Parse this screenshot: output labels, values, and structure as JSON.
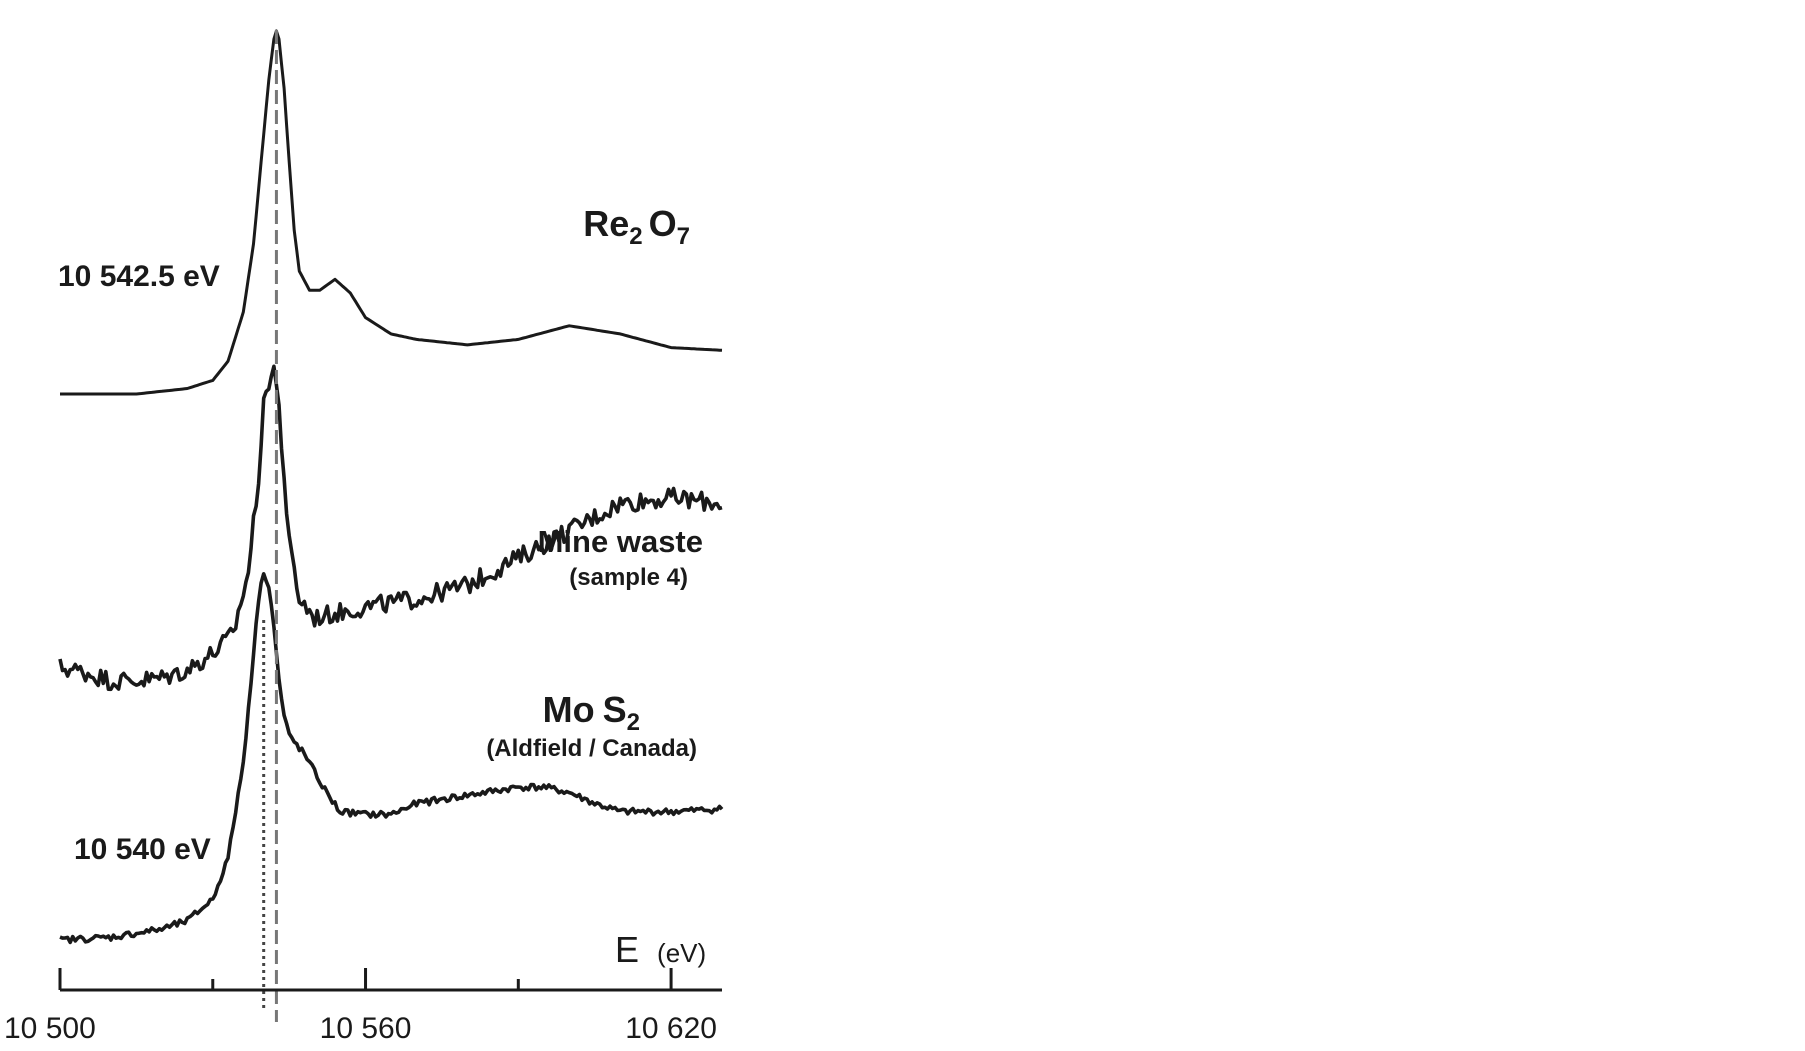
{
  "chart_data": {
    "type": "line",
    "xlabel": "E",
    "xunit": "(eV)",
    "xlim": [
      10500,
      10630
    ],
    "tick_labels": [
      "10 500",
      "10 560",
      "10 620"
    ],
    "major_ticks": [
      10500,
      10560,
      10620
    ],
    "minor_ticks": [
      10530,
      10590
    ],
    "grid": false,
    "legend": "none",
    "series_labels": [
      {
        "main": "Re",
        "sub1": "2",
        "mid": "O",
        "sub2": "7",
        "note": ""
      },
      {
        "main": "Mine waste",
        "sub1": "",
        "mid": "",
        "sub2": "",
        "note": "(sample 4)"
      },
      {
        "main": "Mo",
        "sub1": "",
        "mid": "S",
        "sub2": "2",
        "note": "(Aldfield / Canada)"
      }
    ],
    "annotations": [
      {
        "text": "10 542.5 eV",
        "x": 10542.5,
        "style": "dashed"
      },
      {
        "text": "10 540 eV",
        "x": 10540,
        "style": "dotted"
      }
    ],
    "series": [
      {
        "key": "re2o7",
        "offset": 2.0,
        "noise": 0,
        "points": [
          [
            10500,
            0.0
          ],
          [
            10515,
            0.0
          ],
          [
            10525,
            0.02
          ],
          [
            10530,
            0.05
          ],
          [
            10533,
            0.12
          ],
          [
            10536,
            0.3
          ],
          [
            10538,
            0.55
          ],
          [
            10540,
            0.95
          ],
          [
            10541,
            1.15
          ],
          [
            10542,
            1.3
          ],
          [
            10542.5,
            1.33
          ],
          [
            10543,
            1.3
          ],
          [
            10544,
            1.12
          ],
          [
            10545,
            0.85
          ],
          [
            10546,
            0.6
          ],
          [
            10547,
            0.45
          ],
          [
            10549,
            0.38
          ],
          [
            10551,
            0.38
          ],
          [
            10554,
            0.42
          ],
          [
            10557,
            0.37
          ],
          [
            10560,
            0.28
          ],
          [
            10565,
            0.22
          ],
          [
            10570,
            0.2
          ],
          [
            10580,
            0.18
          ],
          [
            10590,
            0.2
          ],
          [
            10600,
            0.25
          ],
          [
            10610,
            0.22
          ],
          [
            10620,
            0.17
          ],
          [
            10630,
            0.16
          ]
        ]
      },
      {
        "key": "mine_waste",
        "offset": 1.0,
        "noise": 0.035,
        "points": [
          [
            10500,
            0.0
          ],
          [
            10505,
            -0.02
          ],
          [
            10510,
            -0.05
          ],
          [
            10515,
            -0.05
          ],
          [
            10520,
            -0.04
          ],
          [
            10525,
            -0.01
          ],
          [
            10530,
            0.05
          ],
          [
            10534,
            0.12
          ],
          [
            10537,
            0.35
          ],
          [
            10539,
            0.7
          ],
          [
            10540,
            0.95
          ],
          [
            10541,
            1.05
          ],
          [
            10542,
            1.1
          ],
          [
            10543,
            0.95
          ],
          [
            10544,
            0.7
          ],
          [
            10545,
            0.45
          ],
          [
            10547,
            0.25
          ],
          [
            10550,
            0.18
          ],
          [
            10555,
            0.2
          ],
          [
            10560,
            0.22
          ],
          [
            10570,
            0.25
          ],
          [
            10580,
            0.3
          ],
          [
            10590,
            0.4
          ],
          [
            10600,
            0.5
          ],
          [
            10610,
            0.6
          ],
          [
            10620,
            0.62
          ],
          [
            10630,
            0.6
          ]
        ]
      },
      {
        "key": "mos2",
        "offset": 0.0,
        "noise": 0.012,
        "points": [
          [
            10500,
            0.0
          ],
          [
            10510,
            0.01
          ],
          [
            10520,
            0.04
          ],
          [
            10525,
            0.07
          ],
          [
            10530,
            0.15
          ],
          [
            10533,
            0.3
          ],
          [
            10536,
            0.65
          ],
          [
            10538,
            1.05
          ],
          [
            10539,
            1.25
          ],
          [
            10540,
            1.35
          ],
          [
            10541,
            1.3
          ],
          [
            10542,
            1.15
          ],
          [
            10543,
            0.95
          ],
          [
            10544,
            0.82
          ],
          [
            10545,
            0.75
          ],
          [
            10548,
            0.68
          ],
          [
            10552,
            0.55
          ],
          [
            10555,
            0.47
          ],
          [
            10560,
            0.46
          ],
          [
            10565,
            0.46
          ],
          [
            10570,
            0.5
          ],
          [
            10580,
            0.53
          ],
          [
            10590,
            0.56
          ],
          [
            10595,
            0.56
          ],
          [
            10600,
            0.54
          ],
          [
            10605,
            0.5
          ],
          [
            10610,
            0.47
          ],
          [
            10620,
            0.47
          ],
          [
            10630,
            0.48
          ]
        ]
      }
    ]
  }
}
